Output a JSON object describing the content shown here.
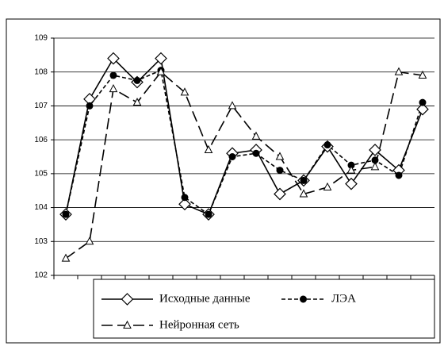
{
  "chart_data": {
    "type": "line",
    "categories": [
      null,
      null,
      null,
      null,
      null,
      null,
      null,
      null,
      null,
      null,
      null,
      null,
      null,
      null,
      null,
      null
    ],
    "series": [
      {
        "name": "Исходные данные",
        "color": "#000000",
        "dash": "solid",
        "marker": "diamond",
        "values": [
          103.8,
          107.2,
          108.4,
          107.7,
          108.4,
          104.1,
          103.8,
          105.6,
          105.7,
          104.4,
          104.8,
          105.8,
          104.7,
          105.7,
          105.1,
          106.9
        ]
      },
      {
        "name": "ЛЭА",
        "color": "#000000",
        "dash": "short",
        "marker": "circle",
        "values": [
          103.8,
          107.0,
          107.9,
          107.75,
          108.05,
          104.3,
          103.8,
          105.5,
          105.6,
          105.1,
          104.8,
          105.85,
          105.25,
          105.4,
          104.95,
          107.1
        ]
      },
      {
        "name": "Нейронная сеть",
        "color": "#000000",
        "dash": "long",
        "marker": "triangle",
        "values": [
          102.5,
          103.0,
          107.5,
          107.1,
          108.0,
          107.4,
          105.7,
          107.0,
          106.1,
          105.5,
          104.4,
          104.6,
          105.1,
          105.2,
          108.0,
          107.9
        ]
      }
    ],
    "ylim": [
      102,
      109
    ],
    "yticks": [
      102,
      103,
      104,
      105,
      106,
      107,
      108,
      109
    ],
    "grid": true,
    "legend": "bottom"
  }
}
